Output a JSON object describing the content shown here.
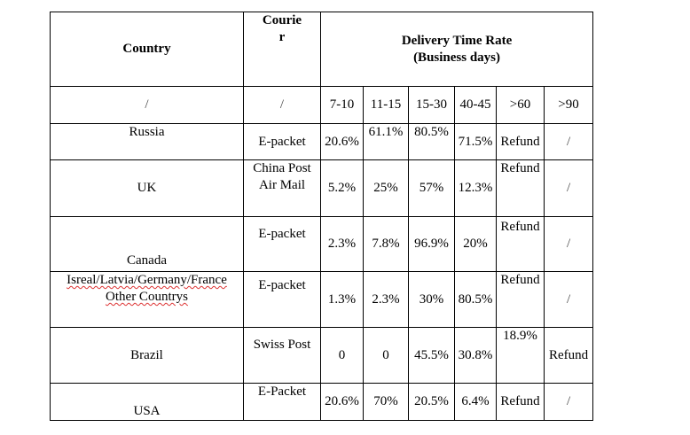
{
  "header": {
    "country": "Country",
    "courier_line1": "Courie",
    "courier_line2": "r",
    "rate_line1": "Delivery Time Rate",
    "rate_line2": "(Business days)"
  },
  "subheader": {
    "country": "/",
    "courier": "/",
    "ranges": [
      "7-10",
      "11-15",
      "15-30",
      "40-45",
      ">60",
      ">90"
    ]
  },
  "rows": [
    {
      "country": "Russia",
      "courier": "E-packet",
      "values": [
        "20.6%",
        "61.1%",
        "80.5%",
        "71.5%",
        "Refund",
        "/"
      ]
    },
    {
      "country": "UK",
      "courier": "China Post Air Mail",
      "values": [
        "5.2%",
        "25%",
        "57%",
        "12.3%",
        "Refund",
        "/"
      ]
    },
    {
      "country": "Canada",
      "courier": "E-packet",
      "values": [
        "2.3%",
        "7.8%",
        "96.9%",
        "20%",
        "Refund",
        "/"
      ]
    },
    {
      "country": "Isreal/Latvia/Germany/France",
      "country_extra": "Other Countrys",
      "courier": "E-packet",
      "values": [
        "1.3%",
        "2.3%",
        "30%",
        "80.5%",
        "Refund",
        "/"
      ]
    },
    {
      "country": "Brazil",
      "courier": "Swiss Post",
      "values": [
        "0",
        "0",
        "45.5%",
        "30.8%",
        "18.9%",
        "Refund"
      ]
    },
    {
      "country": "USA",
      "courier": "E-Packet",
      "values": [
        "20.6%",
        "70%",
        "20.5%",
        "6.4%",
        "Refund",
        "/"
      ]
    }
  ]
}
